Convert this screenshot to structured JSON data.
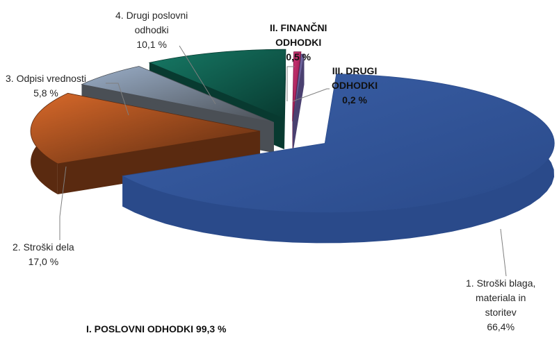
{
  "chart_data": {
    "type": "pie",
    "variant": "3d-exploded",
    "slices": [
      {
        "name": "1. Stroški blaga, materiala in storitev",
        "label_lines": [
          "1. Stroški blaga,",
          "materiala in",
          "storitev"
        ],
        "value_text": "66,4%",
        "value": 66.4,
        "color": "#3a5fa6",
        "side_color": "#2a4a8a"
      },
      {
        "name": "2. Stroški dela",
        "label_lines": [
          "2. Stroški dela"
        ],
        "value_text": "17,0 %",
        "value": 17.0,
        "color": "#d8692a",
        "side_color": "#5a2a10"
      },
      {
        "name": "3. Odpisi vrednosti",
        "label_lines": [
          "3. Odpisi vrednosti"
        ],
        "value_text": "5,8 %",
        "value": 5.8,
        "color": "#9aaec8",
        "side_color": "#4a4f55"
      },
      {
        "name": "4. Drugi poslovni odhodki",
        "label_lines": [
          "4. Drugi poslovni",
          "odhodki"
        ],
        "value_text": "10,1 %",
        "value": 10.1,
        "color": "#177a66",
        "side_color": "#083a30"
      },
      {
        "name": "II. FINANČNI ODHODKI",
        "label_lines": [
          "II. FINANČNI",
          "ODHODKI"
        ],
        "value_text": "0,5 %",
        "value": 0.5,
        "color": "#d8387a",
        "side_color": "#7a1440"
      },
      {
        "name": "III. DRUGI ODHODKI",
        "label_lines": [
          "III. DRUGI",
          "ODHODKI"
        ],
        "value_text": "0,2 %",
        "value": 0.2,
        "color": "#8a7fc0",
        "side_color": "#4a4070"
      }
    ],
    "group_label": "I. POSLOVNI ODHODKI 99,3 %"
  }
}
